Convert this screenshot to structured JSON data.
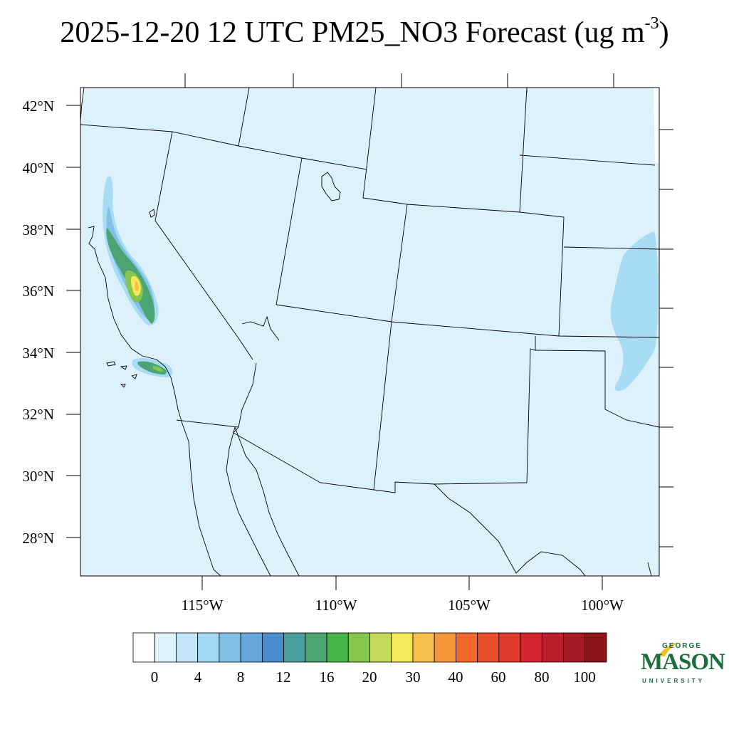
{
  "title": {
    "text": "2025-12-20 12 UTC PM25_NO3 Forecast (ug m",
    "sup": "-3",
    "close": ")"
  },
  "axes": {
    "lat_labels": [
      "42°N",
      "40°N",
      "38°N",
      "36°N",
      "34°N",
      "32°N",
      "30°N",
      "28°N"
    ],
    "lon_labels": [
      "115°W",
      "110°W",
      "105°W",
      "100°W"
    ]
  },
  "colorbar": {
    "colors": [
      "#ffffff",
      "#dff2fc",
      "#c2e6f8",
      "#a2d8f4",
      "#82c0e8",
      "#65a8dc",
      "#4a8ccc",
      "#4a9e9e",
      "#4aa572",
      "#48b548",
      "#86c54e",
      "#c4d85a",
      "#f7e859",
      "#f6c04a",
      "#f5973a",
      "#f2672a",
      "#e9502c",
      "#df3a2c",
      "#d42430",
      "#b91e2a",
      "#a31b24",
      "#8e1518"
    ],
    "labels": [
      "0",
      "4",
      "8",
      "12",
      "16",
      "20",
      "30",
      "40",
      "60",
      "80",
      "100"
    ]
  },
  "map": {
    "background_color": "#ddf1fc",
    "plume_colors": [
      "#a8dbf4",
      "#82c0e8",
      "#4aa572",
      "#86c54e",
      "#f7e859",
      "#f6c04a"
    ]
  },
  "logo": {
    "george": "GEORGE",
    "mason": "MASON",
    "university": "UNIVERSITY"
  }
}
